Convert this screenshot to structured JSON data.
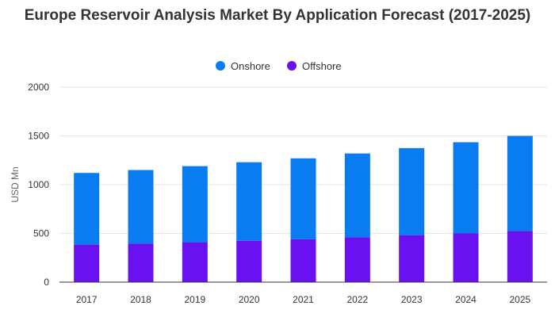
{
  "chart_data": {
    "type": "bar",
    "stacked": true,
    "title": "Europe Reservoir Analysis Market By Application Forecast (2017-2025)",
    "xlabel": "",
    "ylabel": "USD Mn",
    "ylim": [
      0,
      2000
    ],
    "yticks": [
      0,
      500,
      1000,
      1500,
      2000
    ],
    "grid": true,
    "legend_position": "top-center",
    "categories": [
      "2017",
      "2018",
      "2019",
      "2020",
      "2021",
      "2022",
      "2023",
      "2024",
      "2025"
    ],
    "series": [
      {
        "name": "Offshore",
        "color": "#6a11f0",
        "values": [
          385,
          395,
          410,
          425,
          440,
          460,
          480,
          500,
          525
        ]
      },
      {
        "name": "Onshore",
        "color": "#0a7cf2",
        "values": [
          735,
          755,
          780,
          805,
          830,
          860,
          895,
          935,
          975
        ]
      }
    ],
    "legend_order": [
      "Onshore",
      "Offshore"
    ]
  }
}
